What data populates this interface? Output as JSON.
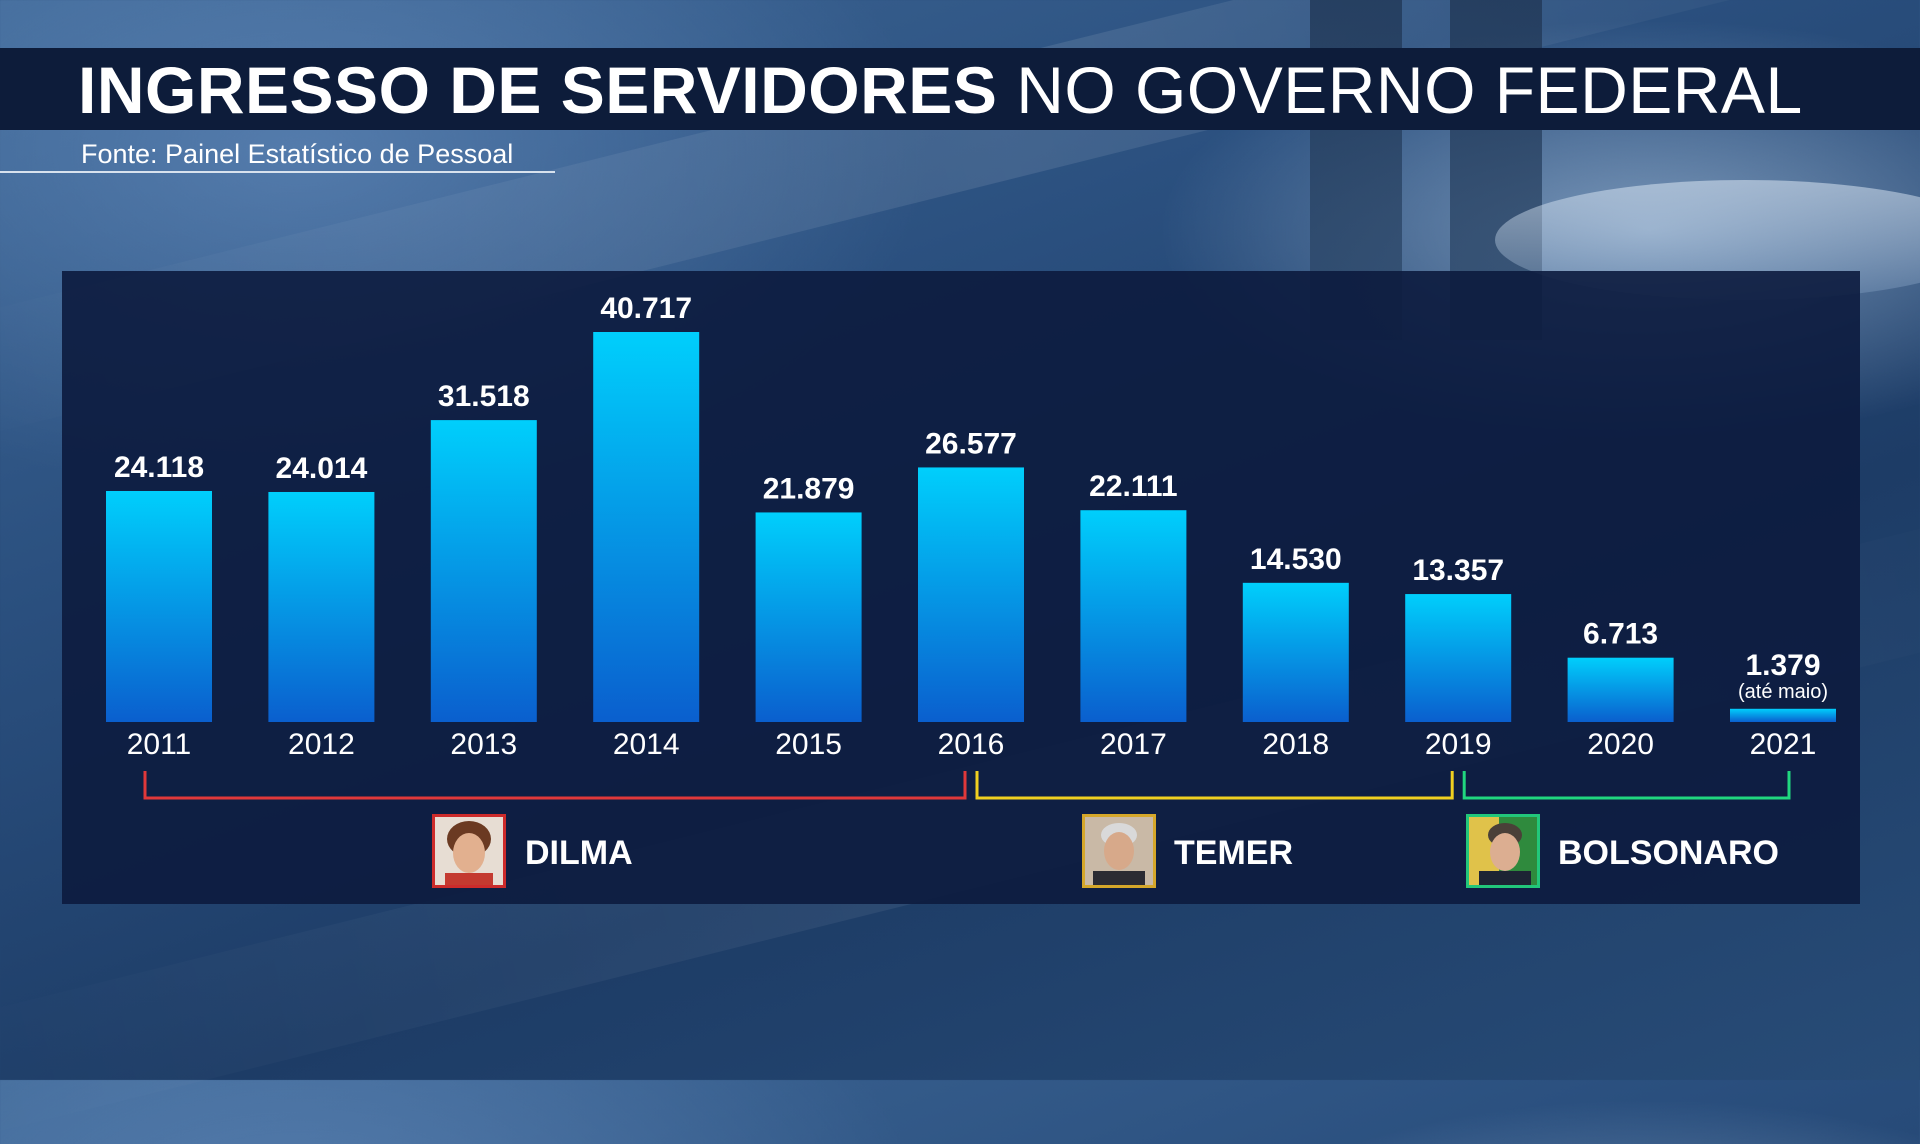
{
  "title": {
    "bold_part": "INGRESSO DE SERVIDORES",
    "regular_part": "NO GOVERNO FEDERAL"
  },
  "source": "Fonte: Painel Estatístico de Pessoal",
  "chart_data": {
    "type": "bar",
    "title": "INGRESSO DE SERVIDORES NO GOVERNO FEDERAL",
    "categories": [
      "2011",
      "2012",
      "2013",
      "2014",
      "2015",
      "2016",
      "2017",
      "2018",
      "2019",
      "2020",
      "2021"
    ],
    "values": [
      24118,
      24014,
      31518,
      40717,
      21879,
      26577,
      22111,
      14530,
      13357,
      6713,
      1379
    ],
    "value_labels": [
      "24.118",
      "24.014",
      "31.518",
      "40.717",
      "21.879",
      "26.577",
      "22.111",
      "14.530",
      "13.357",
      "6.713",
      "1.379"
    ],
    "annotations": [
      {
        "category": "2021",
        "text": "(até maio)"
      }
    ],
    "xlabel": "",
    "ylabel": "",
    "ylim": [
      0,
      40717
    ],
    "grid": false,
    "bar_color": "#00c8f8",
    "periods": [
      {
        "name": "DILMA",
        "from": "2011",
        "to": "2016",
        "color": "#e0383a"
      },
      {
        "name": "TEMER",
        "from": "2016",
        "to": "2019",
        "color": "#f0d020"
      },
      {
        "name": "BOLSONARO",
        "from": "2019",
        "to": "2021",
        "color": "#20d77f"
      }
    ]
  }
}
